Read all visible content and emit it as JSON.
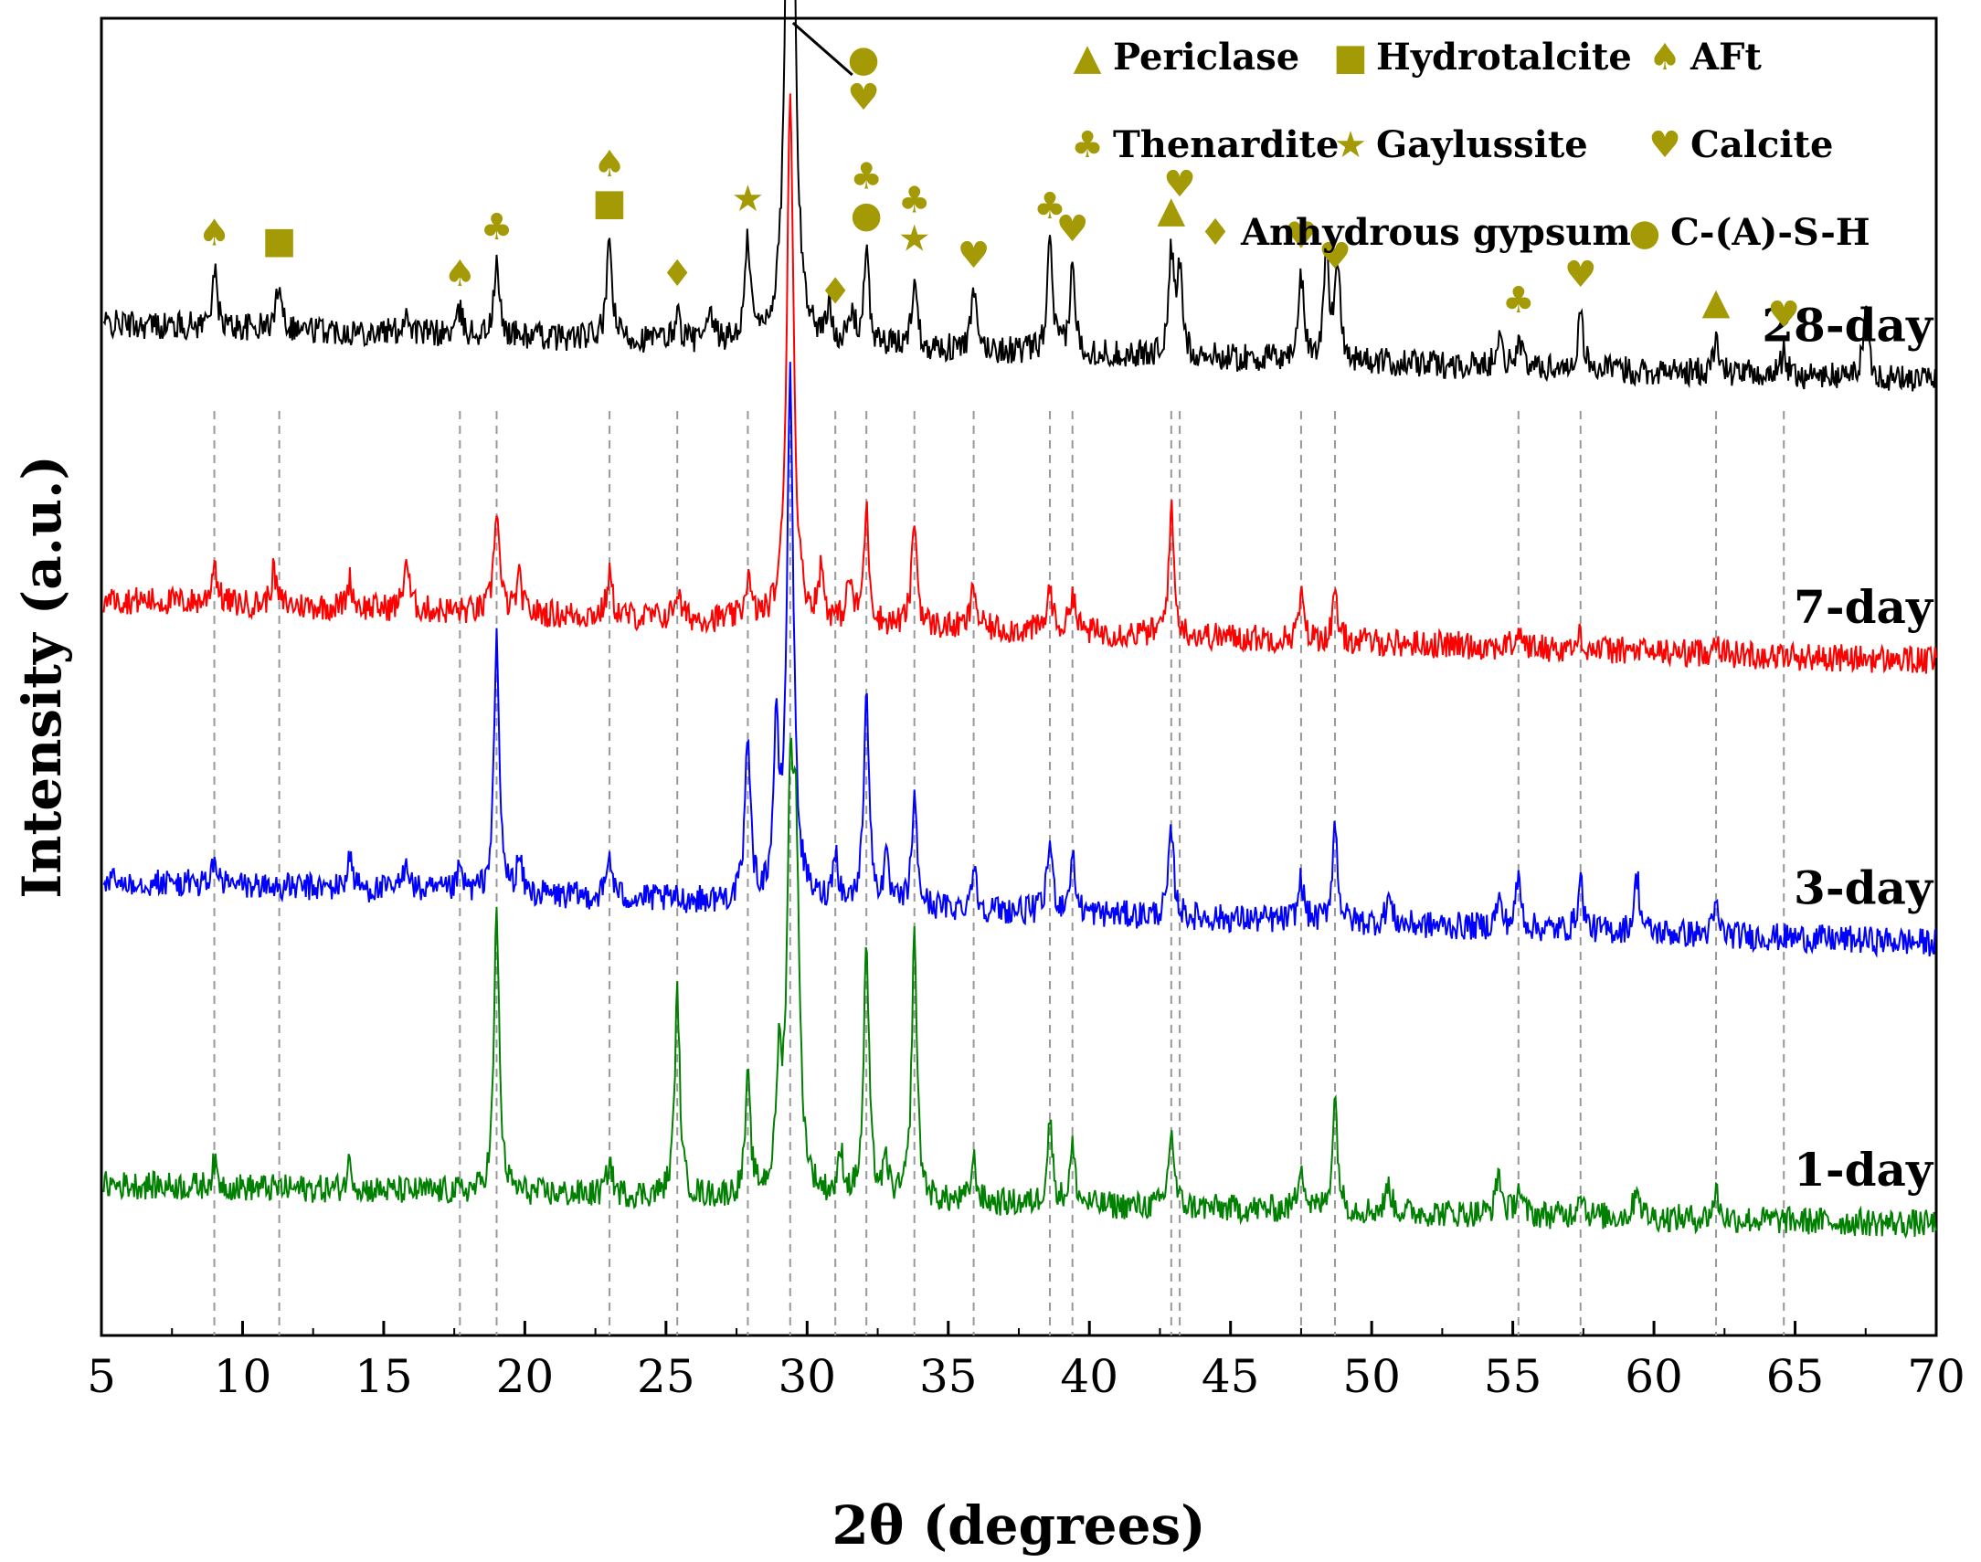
{
  "chart_data": {
    "type": "line",
    "title": "",
    "xlabel": "2θ (degrees)",
    "ylabel": "Intensity (a.u.)",
    "xlim": [
      5,
      70
    ],
    "xticks": [
      5,
      10,
      15,
      20,
      25,
      30,
      35,
      40,
      45,
      50,
      55,
      60,
      65,
      70
    ],
    "marker_color": "#a39a06",
    "reference_lines_2theta": [
      9.0,
      11.3,
      17.7,
      19.0,
      23.0,
      25.4,
      27.9,
      29.4,
      31.0,
      32.1,
      33.8,
      35.9,
      38.6,
      39.4,
      42.9,
      43.2,
      47.5,
      48.7,
      55.2,
      57.4,
      62.2,
      64.6
    ],
    "series": [
      {
        "name": "28-day",
        "label": "28-day",
        "color": "#000000",
        "offset": 3.0,
        "slope": 0.2,
        "noise": 0.05,
        "peaks": [
          [
            9.0,
            0.2
          ],
          [
            11.3,
            0.18
          ],
          [
            15.8,
            0.08
          ],
          [
            17.7,
            0.08
          ],
          [
            19.0,
            0.25
          ],
          [
            23.0,
            0.35
          ],
          [
            25.4,
            0.1
          ],
          [
            26.6,
            0.08
          ],
          [
            27.9,
            0.35
          ],
          [
            29.4,
            3.3
          ],
          [
            30.8,
            0.12
          ],
          [
            31.6,
            0.1
          ],
          [
            32.1,
            0.32
          ],
          [
            33.8,
            0.25
          ],
          [
            35.9,
            0.2
          ],
          [
            38.6,
            0.38
          ],
          [
            39.4,
            0.3
          ],
          [
            42.9,
            0.35
          ],
          [
            43.2,
            0.3
          ],
          [
            47.5,
            0.3
          ],
          [
            48.4,
            0.38
          ],
          [
            48.8,
            0.35
          ],
          [
            54.5,
            0.12
          ],
          [
            55.2,
            0.1
          ],
          [
            57.4,
            0.2
          ],
          [
            62.2,
            0.12
          ],
          [
            64.6,
            0.08
          ],
          [
            67.5,
            0.25
          ]
        ]
      },
      {
        "name": "7-day",
        "label": "7-day",
        "color": "#ff0000",
        "offset": 2.0,
        "slope": 0.22,
        "noise": 0.05,
        "peaks": [
          [
            9.0,
            0.15
          ],
          [
            11.1,
            0.12
          ],
          [
            13.8,
            0.1
          ],
          [
            15.8,
            0.18
          ],
          [
            19.0,
            0.38
          ],
          [
            19.8,
            0.12
          ],
          [
            23.0,
            0.15
          ],
          [
            25.4,
            0.1
          ],
          [
            27.9,
            0.15
          ],
          [
            29.4,
            1.9
          ],
          [
            30.5,
            0.18
          ],
          [
            31.5,
            0.15
          ],
          [
            32.1,
            0.4
          ],
          [
            33.8,
            0.38
          ],
          [
            35.9,
            0.15
          ],
          [
            38.6,
            0.15
          ],
          [
            39.4,
            0.15
          ],
          [
            42.9,
            0.45
          ],
          [
            47.5,
            0.15
          ],
          [
            48.7,
            0.15
          ],
          [
            55.2,
            0.06
          ],
          [
            57.4,
            0.05
          ],
          [
            62.2,
            0.06
          ]
        ]
      },
      {
        "name": "3-day",
        "label": "3-day",
        "color": "#0000ff",
        "offset": 1.0,
        "slope": 0.22,
        "noise": 0.05,
        "peaks": [
          [
            9.0,
            0.08
          ],
          [
            13.8,
            0.12
          ],
          [
            15.8,
            0.12
          ],
          [
            17.7,
            0.08
          ],
          [
            19.0,
            0.9
          ],
          [
            19.8,
            0.12
          ],
          [
            23.0,
            0.15
          ],
          [
            27.9,
            0.6
          ],
          [
            28.9,
            0.55
          ],
          [
            29.4,
            1.85
          ],
          [
            31.0,
            0.18
          ],
          [
            32.1,
            0.78
          ],
          [
            32.8,
            0.15
          ],
          [
            33.8,
            0.38
          ],
          [
            35.9,
            0.15
          ],
          [
            38.6,
            0.25
          ],
          [
            39.4,
            0.2
          ],
          [
            42.9,
            0.3
          ],
          [
            47.5,
            0.15
          ],
          [
            48.7,
            0.35
          ],
          [
            50.6,
            0.1
          ],
          [
            54.5,
            0.1
          ],
          [
            55.2,
            0.18
          ],
          [
            57.4,
            0.18
          ],
          [
            59.4,
            0.2
          ],
          [
            62.2,
            0.1
          ]
        ]
      },
      {
        "name": "1-day",
        "label": "1-day",
        "color": "#008000",
        "offset": 0.0,
        "slope": 0.14,
        "noise": 0.05,
        "peaks": [
          [
            9.0,
            0.08
          ],
          [
            13.8,
            0.1
          ],
          [
            19.0,
            1.0
          ],
          [
            23.0,
            0.12
          ],
          [
            25.4,
            0.72
          ],
          [
            27.9,
            0.4
          ],
          [
            29.0,
            0.4
          ],
          [
            29.4,
            1.2
          ],
          [
            29.6,
            1.1
          ],
          [
            31.2,
            0.15
          ],
          [
            32.1,
            0.9
          ],
          [
            32.8,
            0.12
          ],
          [
            33.8,
            0.95
          ],
          [
            35.9,
            0.15
          ],
          [
            38.6,
            0.3
          ],
          [
            39.4,
            0.2
          ],
          [
            42.9,
            0.28
          ],
          [
            47.5,
            0.18
          ],
          [
            48.7,
            0.4
          ],
          [
            50.6,
            0.1
          ],
          [
            54.5,
            0.15
          ],
          [
            55.2,
            0.1
          ],
          [
            57.4,
            0.1
          ],
          [
            59.4,
            0.12
          ],
          [
            62.2,
            0.1
          ]
        ]
      }
    ],
    "legend": {
      "placement": "top-right",
      "entries": [
        {
          "symbol": "▲",
          "label": "Periclase"
        },
        {
          "symbol": "■",
          "label": "Hydrotalcite"
        },
        {
          "symbol": "♠",
          "label": "AFt"
        },
        {
          "symbol": "♣",
          "label": "Thenardite"
        },
        {
          "symbol": "★",
          "label": "Gaylussite"
        },
        {
          "symbol": "♥",
          "label": "Calcite"
        },
        {
          "symbol": "♦",
          "label": "Anhydrous gypsum"
        },
        {
          "symbol": "●",
          "label": "C-(A)-S-H"
        }
      ]
    },
    "phase_markers": [
      {
        "x": 9.0,
        "symbol": "♠"
      },
      {
        "x": 11.3,
        "symbol": "■"
      },
      {
        "x": 17.7,
        "symbol": "♠"
      },
      {
        "x": 19.0,
        "symbol": "♣"
      },
      {
        "x": 23.0,
        "symbol": "■"
      },
      {
        "x": 23.0,
        "symbol": "♠"
      },
      {
        "x": 25.4,
        "symbol": "♦"
      },
      {
        "x": 27.9,
        "symbol": "★"
      },
      {
        "x": 29.4,
        "symbol": "♥"
      },
      {
        "x": 29.4,
        "symbol": "●"
      },
      {
        "x": 31.0,
        "symbol": "♦"
      },
      {
        "x": 32.1,
        "symbol": "●"
      },
      {
        "x": 32.1,
        "symbol": "♣"
      },
      {
        "x": 33.8,
        "symbol": "★"
      },
      {
        "x": 33.8,
        "symbol": "♣"
      },
      {
        "x": 35.9,
        "symbol": "♥"
      },
      {
        "x": 38.6,
        "symbol": "♣"
      },
      {
        "x": 39.4,
        "symbol": "♥"
      },
      {
        "x": 42.9,
        "symbol": "▲"
      },
      {
        "x": 43.2,
        "symbol": "♥"
      },
      {
        "x": 47.5,
        "symbol": "♥"
      },
      {
        "x": 48.7,
        "symbol": "♥"
      },
      {
        "x": 55.2,
        "symbol": "♣"
      },
      {
        "x": 57.4,
        "symbol": "♥"
      },
      {
        "x": 62.2,
        "symbol": "▲"
      },
      {
        "x": 64.6,
        "symbol": "♥"
      }
    ]
  }
}
